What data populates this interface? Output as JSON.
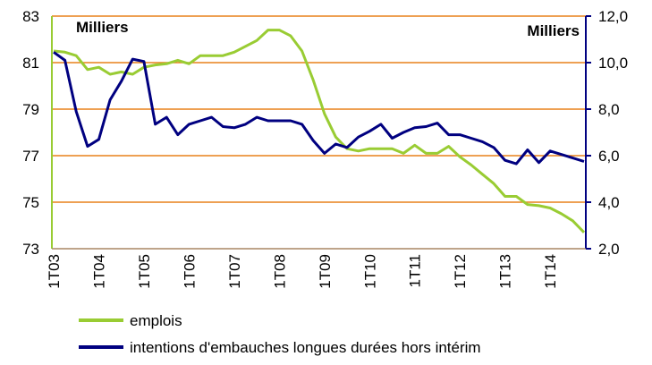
{
  "chart_data": {
    "type": "line",
    "annotations": [
      "Milliers",
      "Milliers"
    ],
    "categories": [
      "1T03",
      null,
      null,
      null,
      "1T04",
      null,
      null,
      null,
      "1T05",
      null,
      null,
      null,
      "1T06",
      null,
      null,
      null,
      "1T07",
      null,
      null,
      null,
      "1T08",
      null,
      null,
      null,
      "1T09",
      null,
      null,
      null,
      "1T10",
      null,
      null,
      null,
      "1T11",
      null,
      null,
      null,
      "1T12",
      null,
      null,
      null,
      "1T13",
      null,
      null,
      null,
      "1T14",
      null,
      null,
      null
    ],
    "series": [
      {
        "name": "emplois",
        "color": "#99cc33",
        "values": [
          81.5,
          81.45,
          81.3,
          80.7,
          80.8,
          80.5,
          80.6,
          80.5,
          80.8,
          80.9,
          80.95,
          81.1,
          80.95,
          81.3,
          81.3,
          81.3,
          81.45,
          81.7,
          81.95,
          82.4,
          82.4,
          82.15,
          81.5,
          80.25,
          78.8,
          77.8,
          77.3,
          77.2,
          77.3,
          77.3,
          77.3,
          77.1,
          77.45,
          77.1,
          77.1,
          77.4,
          76.95,
          76.6,
          76.2,
          75.8,
          75.25,
          75.25,
          74.9,
          74.85,
          74.75,
          74.5,
          74.2,
          73.7
        ]
      },
      {
        "name": "intentions d'embauches longues durées hors intérim",
        "color": "#000080",
        "axis": "y2",
        "values": [
          10.45,
          10.1,
          7.9,
          6.4,
          6.7,
          8.4,
          9.2,
          10.15,
          10.05,
          7.35,
          7.65,
          6.9,
          7.35,
          7.5,
          7.65,
          7.25,
          7.2,
          7.35,
          7.65,
          7.5,
          7.5,
          7.5,
          7.35,
          6.65,
          6.1,
          6.5,
          6.35,
          6.8,
          7.05,
          7.35,
          6.75,
          7.0,
          7.2,
          7.25,
          7.4,
          6.9,
          6.9,
          6.75,
          6.6,
          6.35,
          5.8,
          5.65,
          6.25,
          5.7,
          6.2,
          6.05,
          5.9,
          5.75
        ]
      }
    ],
    "ylim": [
      73,
      83
    ],
    "yticks": [
      73,
      75,
      77,
      79,
      81,
      83
    ],
    "y2lim": [
      2,
      12
    ],
    "y2ticks": [
      {
        "value": 2,
        "label": "2,0"
      },
      {
        "value": 4,
        "label": "4,0"
      },
      {
        "value": 6,
        "label": "6,0"
      },
      {
        "value": 8,
        "label": "8,0"
      },
      {
        "value": 10,
        "label": "10,0"
      },
      {
        "value": 12,
        "label": "12,0"
      }
    ],
    "grid": true,
    "grid_color": "#e8801a",
    "legend": "bottom"
  }
}
